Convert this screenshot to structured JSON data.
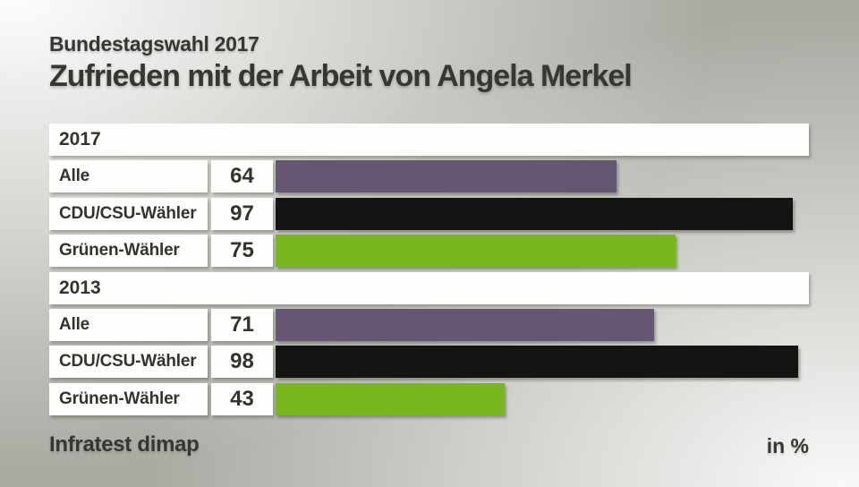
{
  "header": {
    "kicker": "Bundestagswahl 2017",
    "title": "Zufrieden mit der Arbeit von Angela Merkel"
  },
  "footer": {
    "source": "Infratest dimap",
    "unit": "in %"
  },
  "colors": {
    "background_base": "#aaaaa3",
    "cell_background": "#fefefd",
    "text": "#383633",
    "bar_alle": "#655771",
    "bar_cdu_csu": "#161412",
    "bar_gruene": "#78b81e"
  },
  "chart_data": {
    "type": "bar",
    "orientation": "horizontal",
    "unit": "%",
    "value_range": [
      0,
      100
    ],
    "kicker": "Bundestagswahl 2017",
    "title": "Zufrieden mit der Arbeit von Angela Merkel",
    "source": "Infratest dimap",
    "note": "in %",
    "groups": [
      {
        "label": "2017",
        "rows": [
          {
            "label": "Alle",
            "value": 64,
            "color": "#655771"
          },
          {
            "label": "CDU/CSU-Wähler",
            "value": 97,
            "color": "#161412"
          },
          {
            "label": "Grünen-Wähler",
            "value": 75,
            "color": "#78b81e"
          }
        ]
      },
      {
        "label": "2013",
        "rows": [
          {
            "label": "Alle",
            "value": 71,
            "color": "#655771"
          },
          {
            "label": "CDU/CSU-Wähler",
            "value": 98,
            "color": "#161412"
          },
          {
            "label": "Grünen-Wähler",
            "value": 43,
            "color": "#78b81e"
          }
        ]
      }
    ]
  }
}
